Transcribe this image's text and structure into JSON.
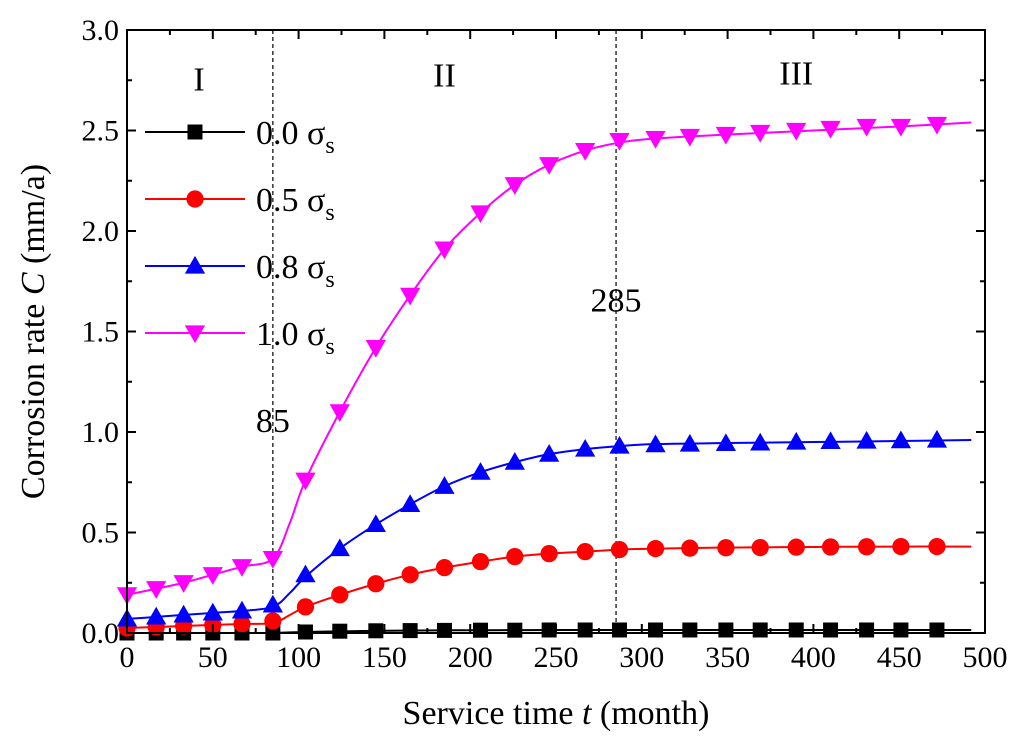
{
  "chart_data": {
    "type": "line",
    "title": "",
    "xlabel": {
      "pre": "Service time ",
      "var": "t",
      "post": " (month)"
    },
    "ylabel": {
      "pre": "Corrosion rate ",
      "var": "C",
      "post": " (mm/a)"
    },
    "xlim": [
      0,
      500
    ],
    "ylim": [
      0.0,
      3.0
    ],
    "xticks": [
      0,
      50,
      100,
      150,
      200,
      250,
      300,
      350,
      400,
      450,
      500
    ],
    "xtick_labels": [
      "0",
      "50",
      "100",
      "150",
      "200",
      "250",
      "300",
      "350",
      "400",
      "450",
      "500"
    ],
    "yticks": [
      0.0,
      0.5,
      1.0,
      1.5,
      2.0,
      2.5,
      3.0
    ],
    "ytick_labels": [
      "0.0",
      "0.5",
      "1.0",
      "1.5",
      "2.0",
      "2.5",
      "3.0"
    ],
    "legend_position": "top-left",
    "stage_lines": [
      {
        "x": 85,
        "label": "85",
        "label_y": 1.0
      },
      {
        "x": 285,
        "label": "285",
        "label_y": 1.6
      }
    ],
    "stages": [
      {
        "label": "I",
        "x": 42,
        "y": 2.7
      },
      {
        "label": "II",
        "x": 185,
        "y": 2.72
      },
      {
        "label": "III",
        "x": 390,
        "y": 2.73
      }
    ],
    "marker_x": [
      0,
      17,
      33,
      50,
      67,
      85,
      104,
      124,
      145,
      165,
      185,
      206,
      226,
      246,
      267,
      287,
      308,
      328,
      349,
      369,
      390,
      410,
      431,
      451,
      472
    ],
    "series": [
      {
        "name": "0.0 σs",
        "base": "0.0 σ",
        "sub": "s",
        "color": "#000000",
        "marker": "square",
        "x": [
          0,
          10,
          20,
          30,
          40,
          50,
          60,
          70,
          80,
          85,
          95,
          110,
          130,
          150,
          180,
          210,
          250,
          285,
          320,
          360,
          400,
          440,
          472,
          492
        ],
        "y": [
          0.0,
          0.0,
          0.0,
          0.0,
          0.0,
          0.0,
          0.0,
          0.0,
          0.0,
          0.0,
          0.003,
          0.006,
          0.009,
          0.011,
          0.013,
          0.014,
          0.015,
          0.015,
          0.015,
          0.015,
          0.015,
          0.015,
          0.015,
          0.015
        ],
        "marker_y": [
          0.0,
          0.0,
          0.0,
          0.0,
          0.0,
          0.0,
          0.005,
          0.009,
          0.011,
          0.012,
          0.013,
          0.014,
          0.014,
          0.015,
          0.015,
          0.015,
          0.015,
          0.015,
          0.015,
          0.015,
          0.015,
          0.015,
          0.015,
          0.015,
          0.015
        ]
      },
      {
        "name": "0.5 σs",
        "base": "0.5 σ",
        "sub": "s",
        "color": "#ff0000",
        "marker": "circle",
        "x": [
          0,
          17,
          33,
          50,
          67,
          85,
          95,
          104,
          124,
          145,
          165,
          185,
          206,
          226,
          246,
          267,
          287,
          308,
          350,
          400,
          450,
          492
        ],
        "y": [
          0.025,
          0.03,
          0.035,
          0.04,
          0.045,
          0.05,
          0.09,
          0.13,
          0.19,
          0.245,
          0.29,
          0.325,
          0.355,
          0.38,
          0.395,
          0.405,
          0.415,
          0.42,
          0.425,
          0.428,
          0.43,
          0.43
        ],
        "marker_y": [
          0.025,
          0.03,
          0.035,
          0.04,
          0.045,
          0.06,
          0.13,
          0.19,
          0.245,
          0.29,
          0.325,
          0.355,
          0.38,
          0.395,
          0.405,
          0.415,
          0.42,
          0.422,
          0.424,
          0.425,
          0.427,
          0.428,
          0.429,
          0.43,
          0.43
        ]
      },
      {
        "name": "0.8 σs",
        "base": "0.8 σ",
        "sub": "s",
        "color": "#0000ff",
        "marker": "triangle-up",
        "x": [
          0,
          17,
          33,
          50,
          67,
          85,
          95,
          104,
          124,
          145,
          165,
          185,
          206,
          226,
          246,
          267,
          287,
          308,
          350,
          400,
          450,
          492
        ],
        "y": [
          0.07,
          0.08,
          0.09,
          0.1,
          0.11,
          0.13,
          0.2,
          0.28,
          0.42,
          0.54,
          0.64,
          0.73,
          0.8,
          0.85,
          0.89,
          0.915,
          0.93,
          0.94,
          0.945,
          0.95,
          0.955,
          0.96
        ],
        "marker_y": [
          0.07,
          0.08,
          0.09,
          0.1,
          0.11,
          0.14,
          0.29,
          0.42,
          0.54,
          0.64,
          0.73,
          0.8,
          0.85,
          0.89,
          0.915,
          0.93,
          0.937,
          0.94,
          0.943,
          0.946,
          0.95,
          0.953,
          0.955,
          0.957,
          0.96
        ]
      },
      {
        "name": "1.0 σs",
        "base": "1.0 σ",
        "sub": "s",
        "color": "#ff00ff",
        "marker": "triangle-down",
        "x": [
          0,
          17,
          33,
          50,
          67,
          85,
          95,
          104,
          124,
          145,
          165,
          185,
          206,
          226,
          246,
          267,
          287,
          308,
          350,
          400,
          450,
          492
        ],
        "y": [
          0.19,
          0.22,
          0.25,
          0.29,
          0.33,
          0.37,
          0.55,
          0.76,
          1.1,
          1.42,
          1.68,
          1.91,
          2.09,
          2.23,
          2.33,
          2.4,
          2.44,
          2.46,
          2.48,
          2.5,
          2.52,
          2.54
        ],
        "marker_y": [
          0.19,
          0.22,
          0.25,
          0.29,
          0.33,
          0.37,
          0.76,
          1.1,
          1.42,
          1.68,
          1.91,
          2.09,
          2.23,
          2.33,
          2.4,
          2.45,
          2.46,
          2.47,
          2.48,
          2.49,
          2.5,
          2.51,
          2.52,
          2.52,
          2.53
        ]
      }
    ]
  }
}
